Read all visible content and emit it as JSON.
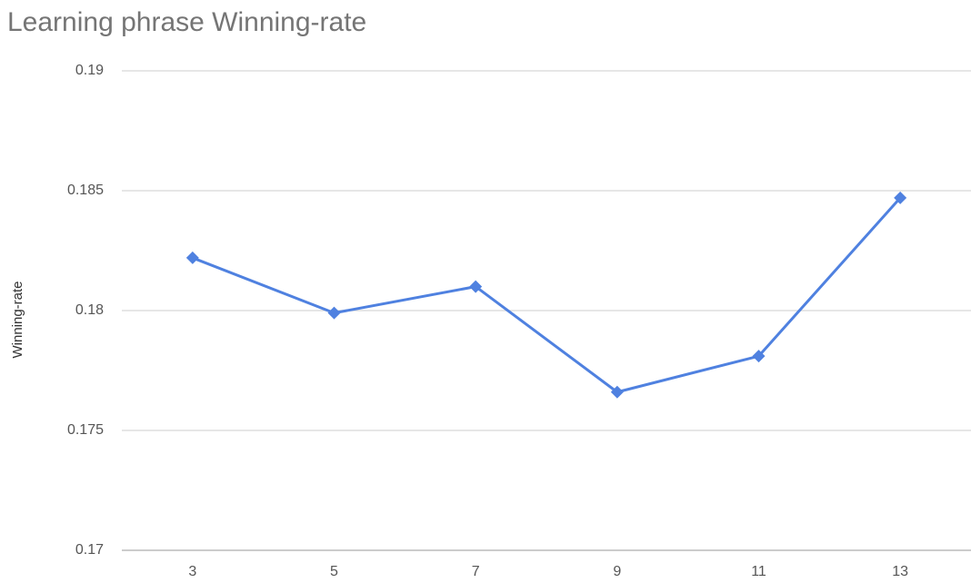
{
  "chart_data": {
    "type": "line",
    "title": "Learning phrase Winning-rate",
    "y_label": "Winning-rate",
    "categories": [
      "3",
      "5",
      "7",
      "9",
      "11",
      "13"
    ],
    "series": [
      {
        "name": "Winning-rate",
        "color": "#4f81e0",
        "values": [
          0.1822,
          0.1799,
          0.181,
          0.1766,
          0.1781,
          0.1847
        ]
      }
    ],
    "ylim": [
      0.17,
      0.19
    ],
    "yticks": [
      0.17,
      0.175,
      0.18,
      0.185,
      0.19
    ],
    "grid": true,
    "legend": false
  }
}
